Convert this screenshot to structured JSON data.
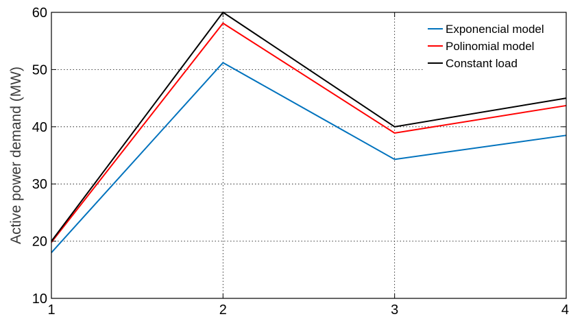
{
  "chart_data": {
    "type": "line",
    "x": [
      1,
      2,
      3,
      4
    ],
    "series": [
      {
        "name": "Exponencial model",
        "color": "#0072BD",
        "values": [
          18,
          51.2,
          34.3,
          38.5
        ]
      },
      {
        "name": "Polinomial model",
        "color": "#FF0000",
        "values": [
          19.8,
          58.1,
          38.9,
          43.7
        ]
      },
      {
        "name": "Constant load",
        "color": "#000000",
        "values": [
          20,
          60,
          40,
          45
        ]
      }
    ],
    "xlabel": "",
    "ylabel": "Active power demand (MW)",
    "xlim": [
      1,
      4
    ],
    "ylim": [
      10,
      60
    ],
    "xticks": [
      "1",
      "2",
      "3",
      "4"
    ],
    "yticks": [
      "10",
      "20",
      "30",
      "40",
      "50",
      "60"
    ],
    "grid": true,
    "legend_position": "top-right"
  }
}
